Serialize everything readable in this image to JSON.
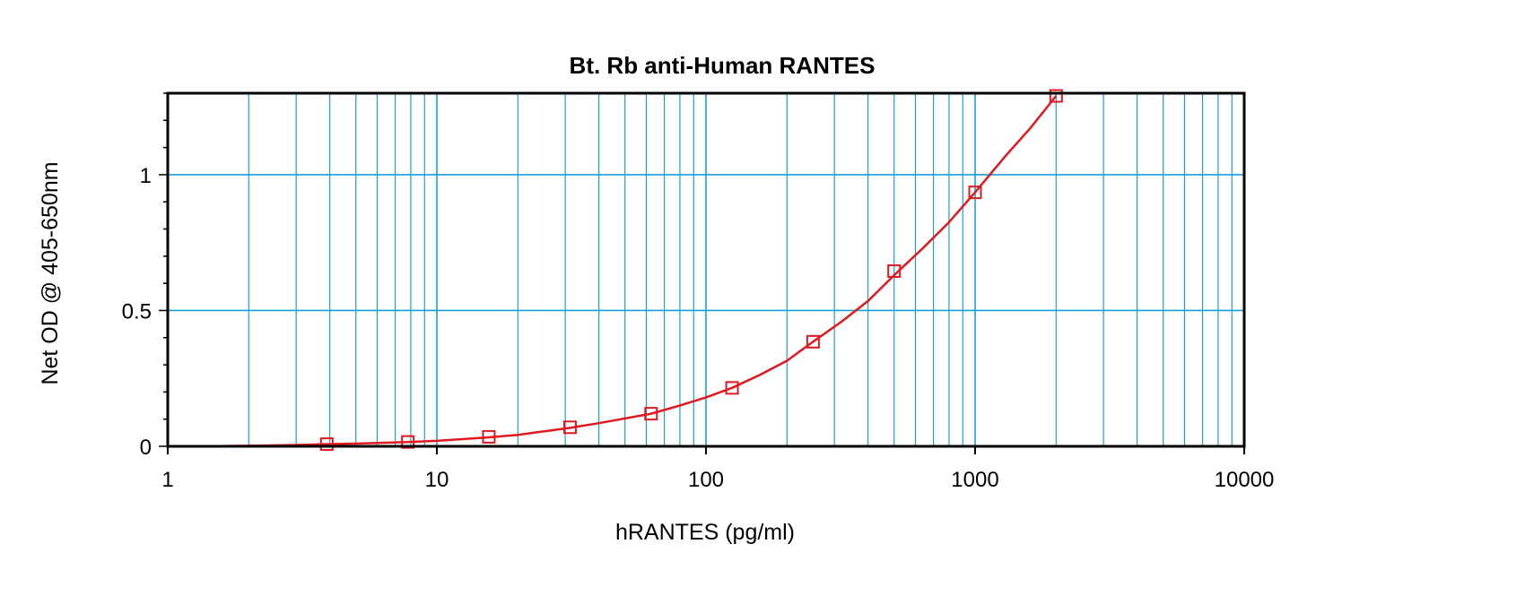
{
  "chart_data": {
    "type": "scatter",
    "title": "Bt. Rb anti-Human RANTES",
    "xlabel": "hRANTES (pg/ml)",
    "ylabel": "Net OD @ 405-650nm",
    "xscale": "log",
    "xlim": [
      1,
      10000
    ],
    "ylim": [
      0,
      1.3
    ],
    "x_ticks": [
      1,
      10,
      100,
      1000,
      10000
    ],
    "x_tick_labels": [
      "1",
      "10",
      "100",
      "1000",
      "10000"
    ],
    "y_ticks": [
      0,
      0.5,
      1
    ],
    "y_tick_labels": [
      "0",
      "0.5",
      "1"
    ],
    "grid": true,
    "series": [
      {
        "x": [
          3.9,
          7.8,
          15.6,
          31.25,
          62.5,
          125,
          250,
          500,
          1000,
          2000
        ],
        "y": [
          0.008,
          0.016,
          0.035,
          0.07,
          0.12,
          0.215,
          0.385,
          0.645,
          0.935,
          1.29
        ]
      }
    ],
    "fit_curve": {
      "x": [
        1.3,
        2,
        3,
        3.9,
        5,
        7.8,
        10,
        15.6,
        20,
        31.25,
        40,
        62.5,
        80,
        100,
        125,
        160,
        200,
        250,
        320,
        400,
        500,
        640,
        800,
        1000,
        1300,
        1600,
        2000
      ],
      "y": [
        0.0,
        0.002,
        0.005,
        0.008,
        0.01,
        0.016,
        0.02,
        0.033,
        0.042,
        0.068,
        0.085,
        0.12,
        0.15,
        0.18,
        0.215,
        0.265,
        0.315,
        0.385,
        0.46,
        0.535,
        0.63,
        0.73,
        0.825,
        0.935,
        1.07,
        1.17,
        1.29
      ]
    },
    "colors": {
      "grid": "#1a9ed9",
      "series": "#e0191e",
      "axis": "#000000"
    }
  }
}
